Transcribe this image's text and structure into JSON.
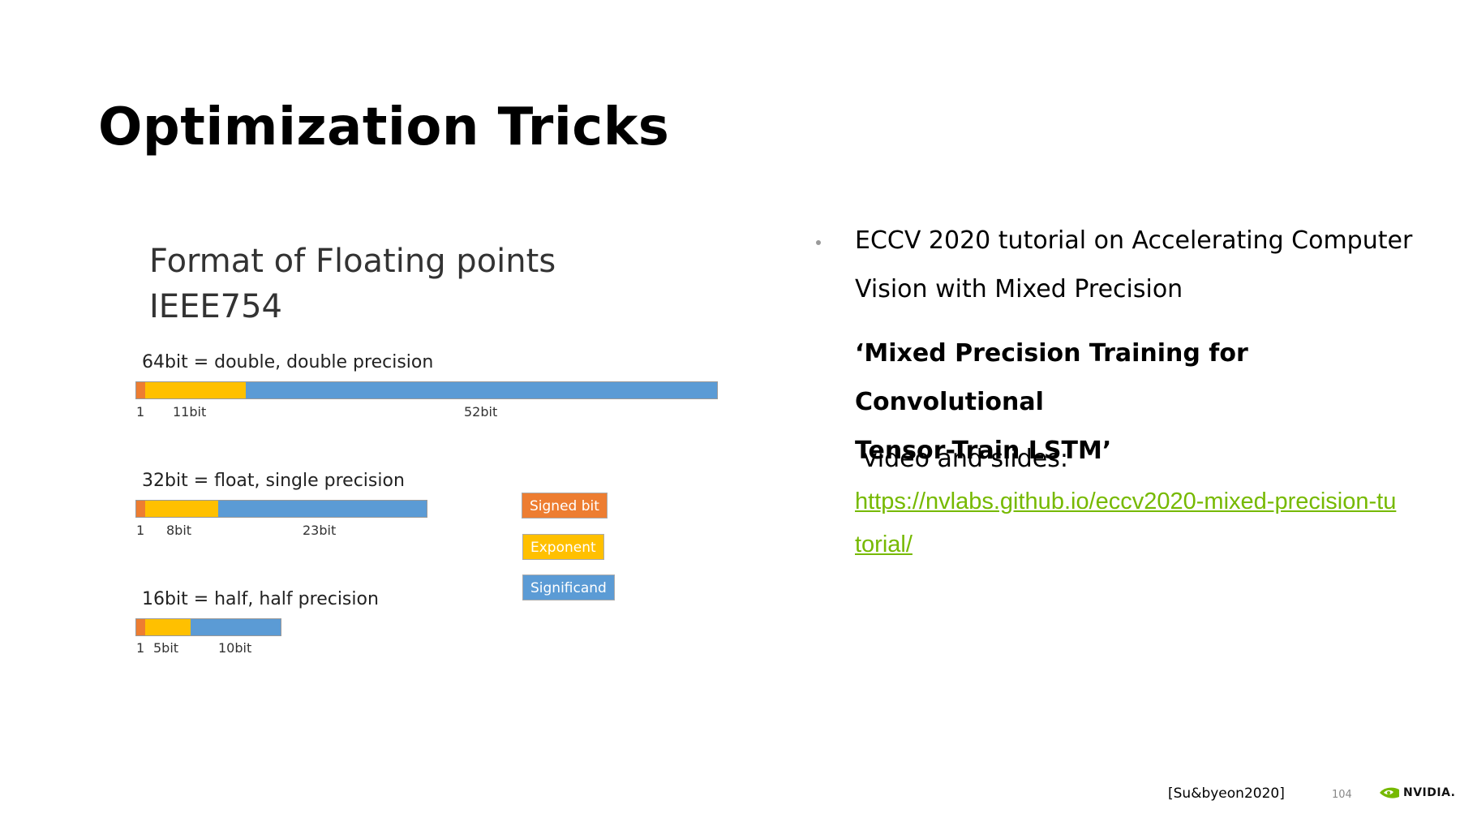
{
  "slide": {
    "title": "Optimization Tricks",
    "page_number": "104",
    "citation": "[Su&byeon2020]",
    "brand": "NVIDIA.",
    "brand_icon": "nvidia-eye-icon",
    "accent_color": "#76b900"
  },
  "figure": {
    "heading_line1": "Format of Floating points",
    "heading_line2": "IEEE754",
    "colors": {
      "sign": "#ed7d31",
      "exponent": "#ffc000",
      "significand": "#5b9bd5"
    },
    "formats": [
      {
        "label": "64bit = double, double precision",
        "sign_label": "1",
        "exponent_label": "11bit",
        "significand_label": "52bit",
        "sign_bits": 1,
        "exponent_bits": 11,
        "significand_bits": 52
      },
      {
        "label": "32bit = float, single precision",
        "sign_label": "1",
        "exponent_label": "8bit",
        "significand_label": "23bit",
        "sign_bits": 1,
        "exponent_bits": 8,
        "significand_bits": 23
      },
      {
        "label": "16bit = half, half precision",
        "sign_label": "1",
        "exponent_label": "5bit",
        "significand_label": "10bit",
        "sign_bits": 1,
        "exponent_bits": 5,
        "significand_bits": 10
      }
    ],
    "legend": [
      {
        "label": "Signed bit",
        "color": "#ed7d31"
      },
      {
        "label": "Exponent",
        "color": "#ffc000"
      },
      {
        "label": "Significand",
        "color": "#5b9bd5"
      }
    ]
  },
  "content": {
    "bullet_line1": "ECCV 2020 tutorial on Accelerating Computer",
    "bullet_line2": "Vision with Mixed Precision",
    "talk_title_line1": "‘Mixed Precision Training for Convolutional",
    "talk_title_line2": "Tensor-Train LSTM’",
    "video_text": "video and slides:",
    "link_line1": "https://nvlabs.github.io/eccv2020-mixed-precision-tu",
    "link_line2": "torial/"
  }
}
